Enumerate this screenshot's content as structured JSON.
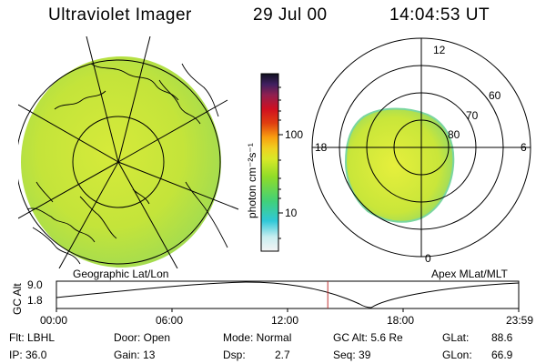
{
  "header": {
    "title": "Ultraviolet Imager",
    "date": "29 Jul 00",
    "time": "14:04:53 UT"
  },
  "colorbar": {
    "unit_label": "photon cm⁻²s⁻¹",
    "tick_100": "100",
    "tick_10": "10"
  },
  "polar_plot": {
    "label_12": "12",
    "label_18": "18",
    "label_6": "6",
    "label_0": "0",
    "label_60": "60",
    "label_70": "70",
    "label_80": "80"
  },
  "panel_labels": {
    "left": "Geographic Lat/Lon",
    "right": "Apex MLat/MLT"
  },
  "timeline": {
    "ylabel": "GC Alt",
    "y_top": "9.0",
    "y_bottom": "1.8",
    "x_ticks": [
      "00:00",
      "06:00",
      "12:00",
      "18:00",
      "23:59"
    ],
    "current_time_hours": 14.08
  },
  "status": {
    "filter": "Flt: LBHL",
    "ip": "IP: 36.0",
    "door": "Door: Open",
    "gain": "Gain: 13",
    "mode": "Mode: Normal",
    "dsp_label": "Dsp:",
    "dsp_value": "2.7",
    "gc_alt": "GC Alt: 5.6 Re",
    "seq": "Seq: 39",
    "glat": "GLat:",
    "glat_value": "88.6",
    "glon": "GLon:",
    "glon_value": "66.9"
  },
  "colors": {
    "image_fill": "#c8e63c",
    "accent_line": "#c03030"
  }
}
